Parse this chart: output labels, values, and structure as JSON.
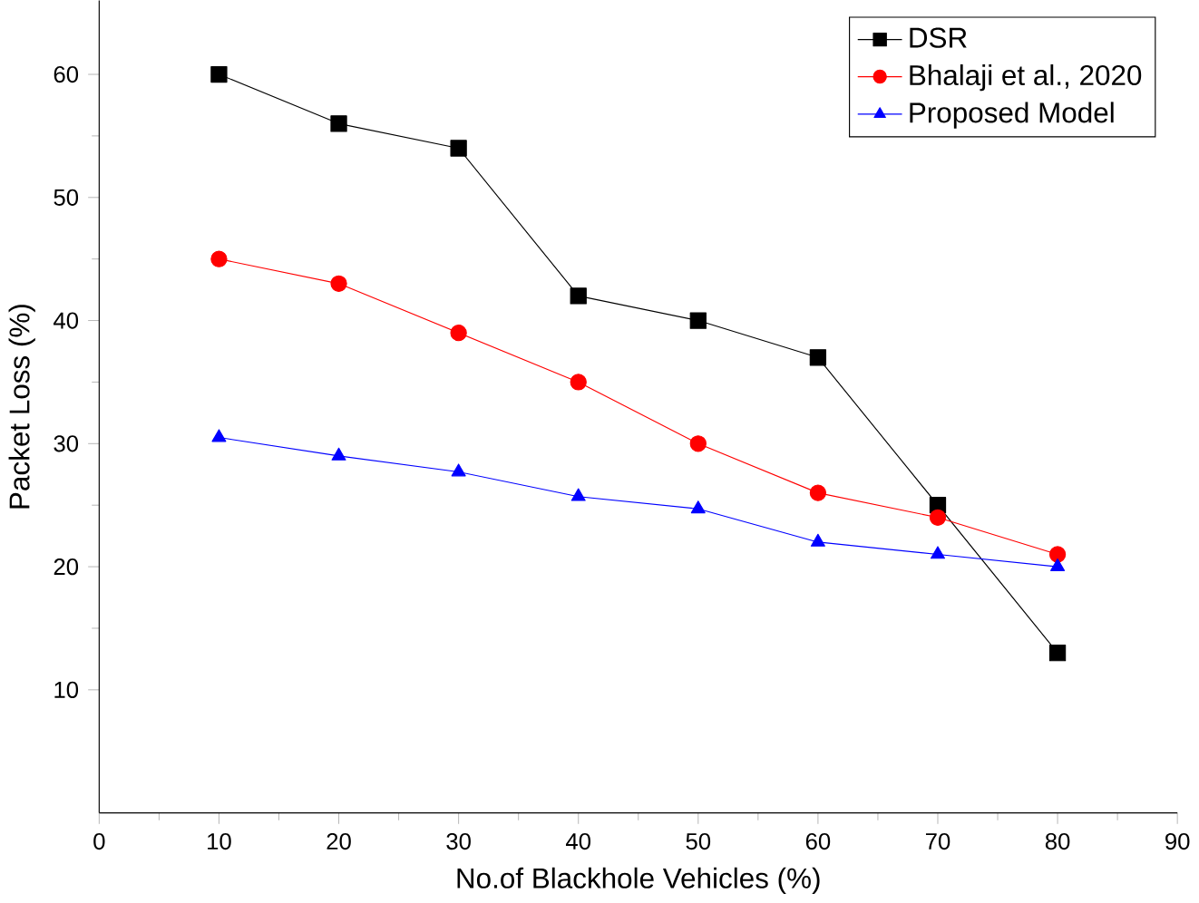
{
  "chart_data": {
    "type": "line",
    "xlabel": "No.of Blackhole Vehicles (%)",
    "ylabel": "Packet Loss (%)",
    "x": [
      10,
      20,
      30,
      40,
      50,
      60,
      70,
      80
    ],
    "series": [
      {
        "name": "DSR",
        "color": "#000000",
        "marker": "square",
        "values": [
          60,
          56,
          54,
          42,
          40,
          37,
          25,
          13
        ]
      },
      {
        "name": "Bhalaji et al., 2020",
        "color": "#ff0000",
        "marker": "circle",
        "values": [
          45,
          43,
          39,
          35,
          30,
          26,
          24,
          21
        ]
      },
      {
        "name": "Proposed Model",
        "color": "#0000ff",
        "marker": "triangle",
        "values": [
          30.5,
          29,
          27.7,
          25.7,
          24.7,
          22,
          21,
          20
        ]
      }
    ],
    "xlim": [
      0,
      90
    ],
    "xticks": [
      0,
      10,
      20,
      30,
      40,
      50,
      60,
      70,
      80,
      90
    ],
    "ylim": [
      0,
      66
    ],
    "yticks": [
      10,
      20,
      30,
      40,
      50,
      60
    ],
    "legend": "top right",
    "grid": false
  }
}
